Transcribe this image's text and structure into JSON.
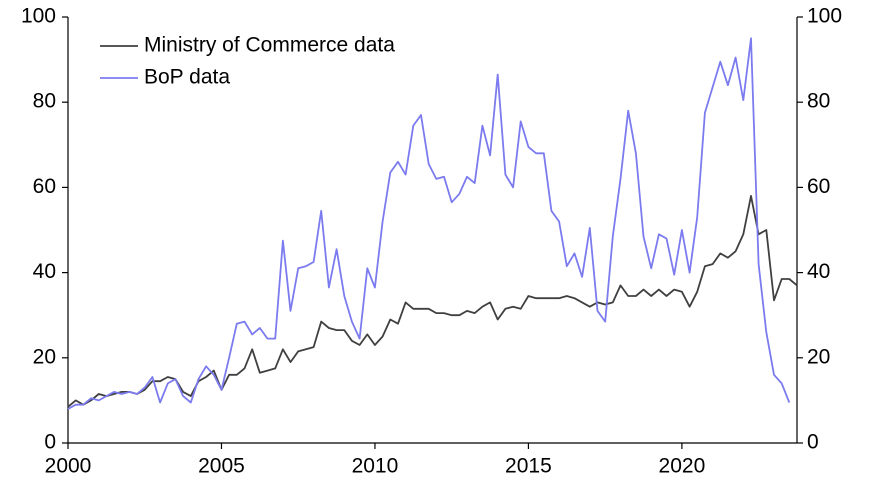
{
  "chart_data": {
    "type": "line",
    "x": [
      2000,
      2000.25,
      2000.5,
      2000.75,
      2001,
      2001.25,
      2001.5,
      2001.75,
      2002,
      2002.25,
      2002.5,
      2002.75,
      2003,
      2003.25,
      2003.5,
      2003.75,
      2004,
      2004.25,
      2004.5,
      2004.75,
      2005,
      2005.25,
      2005.5,
      2005.75,
      2006,
      2006.25,
      2006.5,
      2006.75,
      2007,
      2007.25,
      2007.5,
      2007.75,
      2008,
      2008.25,
      2008.5,
      2008.75,
      2009,
      2009.25,
      2009.5,
      2009.75,
      2010,
      2010.25,
      2010.5,
      2010.75,
      2011,
      2011.25,
      2011.5,
      2011.75,
      2012,
      2012.25,
      2012.5,
      2012.75,
      2013,
      2013.25,
      2013.5,
      2013.75,
      2014,
      2014.25,
      2014.5,
      2014.75,
      2015,
      2015.25,
      2015.5,
      2015.75,
      2016,
      2016.25,
      2016.5,
      2016.75,
      2017,
      2017.25,
      2017.5,
      2017.75,
      2018,
      2018.25,
      2018.5,
      2018.75,
      2019,
      2019.25,
      2019.5,
      2019.75,
      2020,
      2020.25,
      2020.5,
      2020.75,
      2021,
      2021.25,
      2021.5,
      2021.75,
      2022,
      2022.25,
      2022.5,
      2022.75,
      2023,
      2023.25,
      2023.5,
      2023.75
    ],
    "series": [
      {
        "name": "Ministry of Commerce data",
        "color": "#404040",
        "values": [
          8.5,
          10,
          9,
          10,
          11.5,
          11,
          11.5,
          12,
          12,
          11.5,
          12.5,
          14.5,
          14.5,
          15.5,
          15,
          12,
          11,
          14.5,
          15.5,
          17,
          12.5,
          16,
          16,
          17.5,
          22,
          16.5,
          17,
          17.5,
          22,
          19,
          21.5,
          22,
          22.5,
          28.5,
          27,
          26.5,
          26.5,
          24,
          23,
          25.5,
          23,
          25,
          29,
          28,
          33,
          31.5,
          31.5,
          31.5,
          30.5,
          30.5,
          30,
          30,
          31,
          30.5,
          32,
          33,
          29,
          31.5,
          32,
          31.5,
          34.5,
          34,
          34,
          34,
          34,
          34.5,
          34,
          33,
          32,
          33,
          32.5,
          33,
          37,
          34.5,
          34.5,
          36,
          34.5,
          36,
          34.5,
          36,
          35.5,
          32,
          35.5,
          41.5,
          42,
          44.5,
          43.5,
          45,
          49,
          58,
          49,
          50,
          33.5,
          38.5,
          38.5,
          37
        ]
      },
      {
        "name": "BoP data",
        "color": "#7b7bef",
        "values": [
          8,
          9,
          9,
          10.5,
          10,
          11,
          12,
          11.5,
          12,
          11.5,
          13,
          15.5,
          9.5,
          14,
          15,
          11,
          9.5,
          15,
          18,
          16,
          12.5,
          20,
          28,
          28.5,
          25.5,
          27,
          24.5,
          24.5,
          47.5,
          31,
          41,
          41.5,
          42.5,
          54.5,
          36.5,
          45.5,
          34.5,
          28.5,
          24.5,
          41,
          36.5,
          52,
          63.5,
          66,
          63,
          74.5,
          77,
          65.5,
          62,
          62.5,
          56.5,
          58.5,
          62.5,
          61,
          74.5,
          67.5,
          86.5,
          63,
          60,
          75.5,
          69.5,
          68,
          68,
          54.5,
          52,
          41.5,
          44.5,
          39,
          50.5,
          31,
          28.5,
          48.5,
          62,
          78,
          68,
          48.5,
          41,
          49,
          48,
          39.5,
          50,
          40,
          53,
          77.5,
          83.5,
          89.5,
          84,
          90.5,
          80.5,
          95,
          42,
          26,
          16,
          14,
          9.5,
          null
        ]
      }
    ],
    "xlim": [
      2000,
      2023.75
    ],
    "xticks": [
      2000,
      2005,
      2010,
      2015,
      2020
    ],
    "ylim": [
      0,
      100
    ],
    "yticks": [
      0,
      20,
      40,
      60,
      80,
      100
    ],
    "y2lim": [
      0,
      100
    ],
    "y2ticks": [
      0,
      20,
      40,
      60,
      80,
      100
    ],
    "legend": "upper left"
  }
}
